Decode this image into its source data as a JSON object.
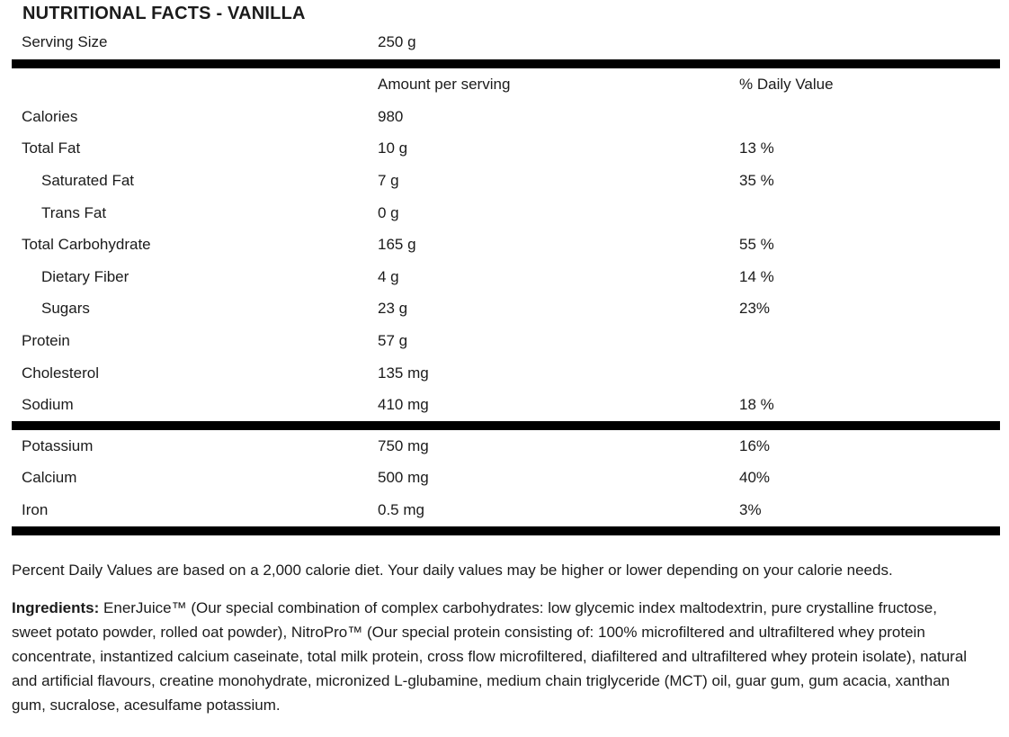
{
  "title": "NUTRITIONAL FACTS - VANILLA",
  "serving": {
    "label": "Serving Size",
    "value": "250 g"
  },
  "table": {
    "columns": [
      "",
      "Amount per serving",
      "% Daily Value"
    ],
    "rows": [
      {
        "label": "Calories",
        "amount": "980",
        "dv": "",
        "indent": false
      },
      {
        "label": "Total Fat",
        "amount": "10 g",
        "dv": "13 %",
        "indent": false
      },
      {
        "label": "Saturated Fat",
        "amount": "7 g",
        "dv": "35 %",
        "indent": true
      },
      {
        "label": "Trans Fat",
        "amount": "0 g",
        "dv": "",
        "indent": true
      },
      {
        "label": "Total Carbohydrate",
        "amount": "165 g",
        "dv": "55 %",
        "indent": false
      },
      {
        "label": "Dietary Fiber",
        "amount": "4 g",
        "dv": "14 %",
        "indent": true
      },
      {
        "label": "Sugars",
        "amount": "23 g",
        "dv": "23%",
        "indent": true
      },
      {
        "label": "Protein",
        "amount": "57 g",
        "dv": "",
        "indent": false
      },
      {
        "label": "Cholesterol",
        "amount": "135 mg",
        "dv": "",
        "indent": false
      },
      {
        "label": "Sodium",
        "amount": "410 mg",
        "dv": "18 %",
        "indent": false
      }
    ],
    "minerals": [
      {
        "label": "Potassium",
        "amount": "750 mg",
        "dv": "16%",
        "indent": false
      },
      {
        "label": "Calcium",
        "amount": "500 mg",
        "dv": "40%",
        "indent": false
      },
      {
        "label": "Iron",
        "amount": "0.5 mg",
        "dv": "3%",
        "indent": false
      }
    ]
  },
  "footnote": "Percent Daily Values are based on a 2,000 calorie diet. Your daily values may be higher or lower depending on your calorie needs.",
  "ingredients": {
    "label": "Ingredients:",
    "text": " EnerJuice™ (Our special combination of complex carbohydrates: low glycemic index maltodextrin, pure crystalline fructose, sweet potato powder, rolled oat powder), NitroPro™ (Our special protein consisting of: 100% microfiltered and ultrafiltered whey protein concentrate, instantized calcium caseinate, total milk protein, cross flow microfiltered, diafiltered and ultrafiltered whey protein isolate), natural and artificial flavours, creatine monohydrate, micronized L-glubamine, medium chain triglyceride (MCT) oil, guar gum, gum acacia, xanthan gum, sucralose, acesulfame potassium."
  },
  "colors": {
    "text": "#1b1b1b",
    "divider": "#000000"
  }
}
